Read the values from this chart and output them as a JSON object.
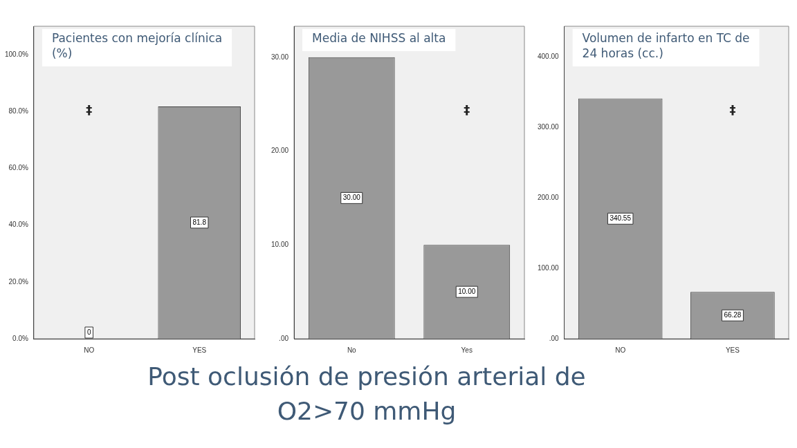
{
  "chart_data": [
    {
      "type": "bar",
      "title": "Pacientes con mejoría clínica (%)",
      "categories": [
        "NO",
        "YES"
      ],
      "series": [
        {
          "color": "#999999",
          "values": [
            0,
            81.8
          ],
          "value_labels": [
            "0",
            "81.8"
          ]
        }
      ],
      "ylim": [
        0,
        110
      ],
      "yticks": [
        {
          "value": 0,
          "label": "0.0%"
        },
        {
          "value": 20,
          "label": "20.0%"
        },
        {
          "value": 40,
          "label": "40.0%"
        },
        {
          "value": 60,
          "label": "60.0%"
        },
        {
          "value": 80,
          "label": "80.0%"
        },
        {
          "value": 100,
          "label": "100.0%"
        }
      ],
      "grid": false,
      "legend": false,
      "annotations": [
        "‡"
      ]
    },
    {
      "type": "bar",
      "title": "Media de NIHSS al alta",
      "categories": [
        "No",
        "Yes"
      ],
      "series": [
        {
          "color": "#999999",
          "values": [
            30,
            10
          ],
          "value_labels": [
            "30.00",
            "10.00"
          ]
        }
      ],
      "ylim": [
        0,
        33.3
      ],
      "yticks": [
        {
          "value": 0,
          "label": ".00"
        },
        {
          "value": 10,
          "label": "10.00"
        },
        {
          "value": 20,
          "label": "20.00"
        },
        {
          "value": 30,
          "label": "30.00"
        }
      ],
      "grid": false,
      "legend": false,
      "xlabel": "Post oclusión de presión arterial de O2>70 mmHg",
      "annotations": [
        "‡"
      ]
    },
    {
      "type": "bar",
      "title": "Volumen de infarto en TC de 24 horas (cc.)",
      "categories": [
        "NO",
        "YES"
      ],
      "series": [
        {
          "color": "#999999",
          "values": [
            340.55,
            66.28
          ],
          "value_labels": [
            "340.55",
            "66.28"
          ]
        }
      ],
      "ylim": [
        0,
        443
      ],
      "yticks": [
        {
          "value": 0,
          "label": ".00"
        },
        {
          "value": 100,
          "label": "100.00"
        },
        {
          "value": 200,
          "label": "200.00"
        },
        {
          "value": 300,
          "label": "300.00"
        },
        {
          "value": 400,
          "label": "400.00"
        }
      ],
      "grid": false,
      "legend": false,
      "annotations": [
        "‡"
      ]
    }
  ]
}
